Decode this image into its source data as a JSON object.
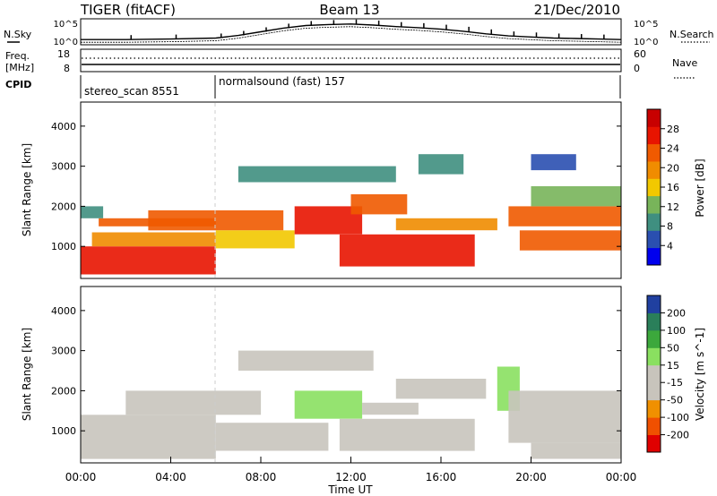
{
  "header": {
    "title": "TIGER (fitACF)",
    "beam": "Beam 13",
    "date": "21/Dec/2010"
  },
  "left_labels": {
    "nsky": "N.Sky",
    "freq": "Freq.",
    "freq_unit": "[MHz]",
    "cpid": "CPID"
  },
  "right_labels": {
    "nsearch": "N.Search",
    "nave": "Nave"
  },
  "top_axes": {
    "noise_top": "10^5",
    "noise_bottom": "10^0",
    "noise_top_right": "10^5",
    "noise_bottom_right": "10^0",
    "freq_top": "18",
    "freq_bottom": "8",
    "nave_top": "60",
    "nave_bottom": "0"
  },
  "cpid_segments": [
    {
      "label": "stereo_scan 8551",
      "start_hour": 0,
      "end_hour": 6
    },
    {
      "label": "normalsound (fast) 157",
      "start_hour": 6,
      "end_hour": 24
    }
  ],
  "colors": {
    "power_scale": [
      "#0000ee",
      "#2a4fb0",
      "#3f8f80",
      "#78b45a",
      "#f2c800",
      "#f08c00",
      "#f05a00",
      "#e81400",
      "#c80000"
    ],
    "velocity_scale": [
      "#e00000",
      "#f05000",
      "#f09000",
      "#c8c4bc",
      "#c8c4bc",
      "#8ae060",
      "#3ca83c",
      "#2a7f5a",
      "#2040a0"
    ],
    "ground_scatter": "#bcbab2"
  },
  "chart_data": [
    {
      "type": "heatmap",
      "panel": "power",
      "xlabel": "",
      "ylabel": "Slant Range [km]",
      "xlim_hours": [
        0,
        24
      ],
      "ylim": [
        200,
        4600
      ],
      "yticks": [
        1000,
        2000,
        3000,
        4000
      ],
      "colorbar": {
        "label": "Power [dB]",
        "range": [
          0,
          32
        ],
        "ticks": [
          "4",
          "8",
          "12",
          "16",
          "20",
          "24",
          "28"
        ]
      },
      "regions": [
        {
          "t0": 0.0,
          "t1": 6.0,
          "r0": 300,
          "r1": 1000,
          "value": 26
        },
        {
          "t0": 0.5,
          "t1": 6.0,
          "r0": 1000,
          "r1": 1350,
          "value": 18
        },
        {
          "t0": 0.8,
          "t1": 6.0,
          "r0": 1500,
          "r1": 1700,
          "value": 22
        },
        {
          "t0": 0.0,
          "t1": 1.0,
          "r0": 1700,
          "r1": 2000,
          "value": 10
        },
        {
          "t0": 3.0,
          "t1": 9.0,
          "r0": 1400,
          "r1": 1900,
          "value": 24
        },
        {
          "t0": 6.0,
          "t1": 9.5,
          "r0": 950,
          "r1": 1400,
          "value": 16
        },
        {
          "t0": 7.0,
          "t1": 14.0,
          "r0": 2600,
          "r1": 3000,
          "value": 10
        },
        {
          "t0": 9.5,
          "t1": 12.5,
          "r0": 1300,
          "r1": 2000,
          "value": 26
        },
        {
          "t0": 12.0,
          "t1": 14.5,
          "r0": 1800,
          "r1": 2300,
          "value": 22
        },
        {
          "t0": 11.5,
          "t1": 17.5,
          "r0": 500,
          "r1": 1300,
          "value": 27
        },
        {
          "t0": 14.0,
          "t1": 18.5,
          "r0": 1400,
          "r1": 1700,
          "value": 18
        },
        {
          "t0": 15.0,
          "t1": 17.0,
          "r0": 2800,
          "r1": 3300,
          "value": 8
        },
        {
          "t0": 19.0,
          "t1": 24.0,
          "r0": 1500,
          "r1": 2000,
          "value": 24
        },
        {
          "t0": 19.5,
          "t1": 24.0,
          "r0": 900,
          "r1": 1400,
          "value": 22
        },
        {
          "t0": 20.0,
          "t1": 24.0,
          "r0": 2000,
          "r1": 2500,
          "value": 12
        },
        {
          "t0": 20.0,
          "t1": 22.0,
          "r0": 2900,
          "r1": 3300,
          "value": 6
        }
      ]
    },
    {
      "type": "heatmap",
      "panel": "velocity",
      "xlabel": "Time UT",
      "ylabel": "Slant Range [km]",
      "xlim_hours": [
        0,
        24
      ],
      "xticks": [
        "00:00",
        "04:00",
        "08:00",
        "12:00",
        "16:00",
        "20:00",
        "00:00"
      ],
      "ylim": [
        200,
        4600
      ],
      "yticks": [
        1000,
        2000,
        3000,
        4000
      ],
      "colorbar": {
        "label": "Velocity [m s^-1]",
        "range": [
          -250,
          250
        ],
        "ticks": [
          "-200",
          "-100",
          "-50",
          "-15",
          "15",
          "50",
          "100",
          "200"
        ]
      },
      "regions": [
        {
          "t0": 0.0,
          "t1": 6.0,
          "r0": 300,
          "r1": 1400,
          "value": 0
        },
        {
          "t0": 2.0,
          "t1": 8.0,
          "r0": 1400,
          "r1": 2000,
          "value": 0
        },
        {
          "t0": 6.0,
          "t1": 11.0,
          "r0": 500,
          "r1": 1200,
          "value": 0
        },
        {
          "t0": 7.0,
          "t1": 13.0,
          "r0": 2500,
          "r1": 3000,
          "value": 0
        },
        {
          "t0": 9.5,
          "t1": 12.5,
          "r0": 1300,
          "r1": 2000,
          "value": 60
        },
        {
          "t0": 11.5,
          "t1": 17.5,
          "r0": 500,
          "r1": 1300,
          "value": 0
        },
        {
          "t0": 12.5,
          "t1": 15.0,
          "r0": 1400,
          "r1": 1700,
          "value": -60
        },
        {
          "t0": 14.0,
          "t1": 18.0,
          "r0": 1800,
          "r1": 2300,
          "value": 0
        },
        {
          "t0": 18.5,
          "t1": 19.5,
          "r0": 1500,
          "r1": 2600,
          "value": 60
        },
        {
          "t0": 19.0,
          "t1": 24.0,
          "r0": 700,
          "r1": 2000,
          "value": 0
        },
        {
          "t0": 20.0,
          "t1": 24.0,
          "r0": 300,
          "r1": 700,
          "value": -60
        }
      ]
    }
  ],
  "time_series": {
    "noise_sky_hours": [
      0,
      2,
      4,
      6,
      7,
      8,
      9,
      10,
      11,
      12,
      13,
      14,
      15,
      16,
      17,
      18,
      19,
      20,
      21,
      22,
      23,
      24
    ],
    "noise_sky_values": [
      1.0,
      1.0,
      1.1,
      1.3,
      1.8,
      2.5,
      3.2,
      3.7,
      3.9,
      4.0,
      3.8,
      3.5,
      3.3,
      3.0,
      2.6,
      2.1,
      1.7,
      1.5,
      1.3,
      1.2,
      1.1,
      1.0
    ]
  }
}
